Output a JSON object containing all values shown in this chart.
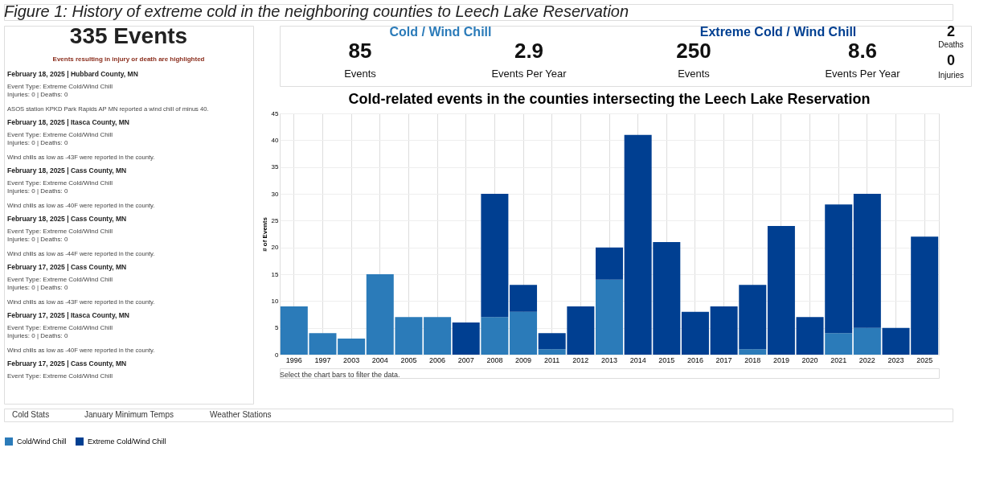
{
  "chart_data": [
    {
      "type": "other",
      "title": "Figure 1: History of extreme cold in the neighboring counties to Leech Lake Reservation"
    },
    {
      "type": "other",
      "title": "335 Events",
      "subtitle": "Events resulting in injury or death are highlighted",
      "annotations": [
        "February 18, 2025  |  Hubbard County, MN",
        "Event Type: Extreme Cold/Wind Chill",
        "Injuries: 0  |  Deaths: 0",
        "ASOS station KPKD Park Rapids AP MN reported a wind chill of minus 40.",
        "February 18, 2025  |  Itasca County, MN",
        "Event Type: Extreme Cold/Wind Chill",
        "Injuries: 0  |  Deaths: 0",
        "Wind chills as low as -43F were reported in the county.",
        "February 18, 2025  |  Cass County, MN",
        "Event Type: Extreme Cold/Wind Chill",
        "Injuries: 0  |  Deaths: 0",
        "Wind chills as low as -40F were reported in the county.",
        "February 18, 2025  |  Cass County, MN",
        "Event Type: Extreme Cold/Wind Chill",
        "Injuries: 0  |  Deaths: 0",
        "Wind chills as low as -44F were reported in the county.",
        "February 17, 2025  |  Cass County, MN",
        "Event Type: Extreme Cold/Wind Chill",
        "Injuries: 0  |  Deaths: 0",
        "Wind chills as low as -43F were reported in the county.",
        "February 17, 2025  |  Itasca County, MN",
        "Event Type: Extreme Cold/Wind Chill",
        "Injuries: 0  |  Deaths: 0",
        "Wind chills as low as -40F were reported in the county.",
        "February 17, 2025  |  Cass County, MN",
        "Event Type: Extreme Cold/Wind Chill"
      ]
    },
    {
      "type": "other",
      "annotations": [
        "Cold / Wind Chill",
        "85",
        "Events",
        "2.9",
        "Events Per Year",
        "Extreme Cold / Wind Chill",
        "250",
        "Events",
        "8.6",
        "Events Per Year",
        "2",
        "Deaths",
        "0",
        "Injuries"
      ]
    },
    {
      "type": "bar",
      "title": "Cold-related events in the counties intersecting the Leech Lake Reservation",
      "ylabel": "# of Events",
      "categories": [
        "1996",
        "1997",
        "2003",
        "2004",
        "2005",
        "2006",
        "2007",
        "2008",
        "2009",
        "2011",
        "2012",
        "2013",
        "2014",
        "2015",
        "2016",
        "2017",
        "2018",
        "2019",
        "2020",
        "2021",
        "2022",
        "2023",
        "2025"
      ],
      "stacked": true,
      "series": [
        {
          "name": "Cold/Wind Chill",
          "color": "#2b7bb9",
          "values": [
            9,
            4,
            3,
            15,
            7,
            7,
            null,
            7,
            8,
            1,
            null,
            14,
            null,
            null,
            null,
            null,
            1,
            null,
            null,
            4,
            5,
            null,
            null
          ]
        },
        {
          "name": "Extreme Cold/Wind Chill",
          "color": "#003f91",
          "values": [
            null,
            null,
            null,
            null,
            null,
            null,
            6,
            23,
            5,
            3,
            9,
            6,
            41,
            21,
            8,
            9,
            12,
            24,
            7,
            24,
            25,
            5,
            22
          ]
        }
      ],
      "ylim": [
        0,
        45
      ],
      "yticks": [
        0,
        5,
        10,
        15,
        20,
        25,
        30,
        35,
        40,
        45
      ],
      "grid": true,
      "legend": "bottom",
      "annotations": [
        "Select the chart bars to filter the data."
      ]
    },
    {
      "type": "other",
      "annotations": [
        "Cold Stats",
        "January Minimum Temps",
        "Weather Stations"
      ]
    }
  ]
}
